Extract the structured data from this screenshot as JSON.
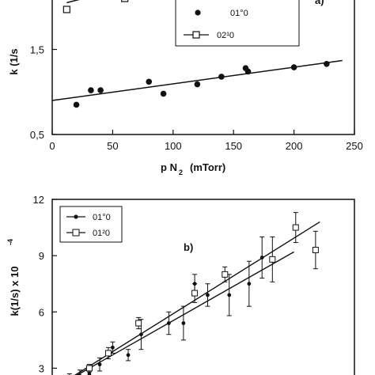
{
  "chart_data": [
    {
      "type": "scatter",
      "panel_label": "a)",
      "xlabel": "p N",
      "xlabel_sub": "2",
      "xlabel_unit": "(mTorr)",
      "ylabel": "k  (1/s",
      "xlim": [
        0,
        250
      ],
      "ylim": [
        0.5,
        2.1
      ],
      "x_ticks": [
        0,
        50,
        100,
        150,
        200,
        250
      ],
      "x_tick_labels": [
        "0",
        "50",
        "100",
        "150",
        "200",
        "250"
      ],
      "y_ticks": [
        0.5,
        1.5
      ],
      "y_tick_labels": [
        "0,5",
        "1,5"
      ],
      "legend": [
        "01°0",
        "02¹0"
      ],
      "series": [
        {
          "name": "01°0",
          "marker": "filled-circle",
          "x": [
            20,
            32,
            40,
            80,
            92,
            120,
            140,
            160,
            162,
            200,
            227
          ],
          "y": [
            0.85,
            1.02,
            1.02,
            1.12,
            0.98,
            1.09,
            1.18,
            1.28,
            1.24,
            1.29,
            1.33
          ],
          "fit": [
            [
              0,
              0.9
            ],
            [
              240,
              1.37
            ]
          ]
        },
        {
          "name": "02¹0",
          "marker": "open-square",
          "x": [
            12,
            60
          ],
          "y": [
            1.97,
            2.1
          ],
          "fit": [
            [
              12,
              2.05
            ],
            [
              40,
              2.15
            ]
          ]
        }
      ]
    },
    {
      "type": "scatter",
      "panel_label": "b)",
      "ylabel": "k(1/s) x 10",
      "ylabel_exp": "-4",
      "ylim": [
        2.3,
        12
      ],
      "y_ticks": [
        3,
        6,
        9,
        12
      ],
      "y_tick_labels": [
        "3",
        "6",
        "9",
        "12"
      ],
      "legend": [
        "01°0",
        "01²0"
      ],
      "series": [
        {
          "name": "01°0",
          "marker": "filled-circle",
          "errorbars": true,
          "x": [
            20,
            32,
            43,
            55,
            70,
            88,
            103,
            135,
            152,
            165,
            180,
            205,
            228,
            243
          ],
          "y": [
            2.4,
            2.6,
            2.7,
            3.2,
            4.1,
            3.7,
            4.8,
            5.4,
            5.4,
            7.5,
            6.9,
            6.9,
            7.5,
            8.9
          ],
          "err": [
            0.3,
            0.3,
            0.3,
            0.35,
            0.3,
            0.3,
            0.8,
            0.6,
            0.9,
            0.5,
            0.6,
            1.1,
            1.2,
            1.1
          ]
        },
        {
          "name": "01²0",
          "marker": "open-square",
          "errorbars": true,
          "x": [
            15,
            43,
            65,
            100,
            165,
            200,
            255,
            282,
            305
          ],
          "y": [
            2.3,
            3.0,
            3.8,
            5.4,
            7.0,
            8.0,
            8.8,
            10.5,
            9.3
          ],
          "err": [
            0.2,
            0.2,
            0.3,
            0.3,
            0.5,
            0.4,
            1.2,
            0.8,
            1.0
          ]
        }
      ],
      "fits": [
        {
          "series": "01°0",
          "from": [
            20,
            2.4
          ],
          "to": [
            280,
            9.2
          ]
        },
        {
          "series": "01²0",
          "from": [
            15,
            2.3
          ],
          "to": [
            310,
            10.8
          ]
        }
      ]
    }
  ]
}
